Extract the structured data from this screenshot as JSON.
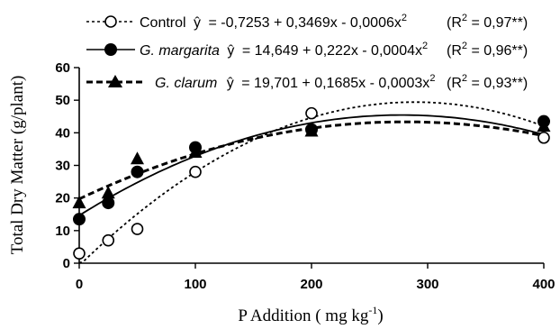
{
  "chart_data": {
    "type": "scatter",
    "xlabel_main": "P Addition ( mg kg",
    "xlabel_sup": "-1",
    "xlabel_end": ")",
    "ylabel": "Total Dry Matter (g/plant)",
    "xlim": [
      0,
      400
    ],
    "ylim": [
      0,
      60
    ],
    "xticks": [
      0,
      100,
      200,
      300,
      400
    ],
    "yticks": [
      0,
      10,
      20,
      30,
      40,
      50,
      60
    ],
    "series": [
      {
        "name": "Control",
        "marker": "open-circle",
        "line": "dotted",
        "equation": "= -0,7253 + 0,3469x - 0,0006x",
        "eq_sup": "2",
        "r2_label": "(R",
        "r2_value": " = 0,97**)",
        "coef": [
          -0.7253,
          0.3469,
          -0.0006
        ],
        "x": [
          0,
          25,
          50,
          100,
          200,
          400
        ],
        "y": [
          3,
          7,
          10.5,
          28,
          46,
          38.5
        ]
      },
      {
        "name": "G. margarita",
        "marker": "filled-circle",
        "line": "solid",
        "equation": "= 14,649 + 0,222x - 0,0004x",
        "eq_sup": "2",
        "r2_label": "(R",
        "r2_value": " = 0,96**)",
        "coef": [
          14.649,
          0.222,
          -0.0004
        ],
        "x": [
          0,
          25,
          50,
          100,
          200,
          400
        ],
        "y": [
          13.5,
          18.5,
          28,
          35.5,
          41,
          43.5
        ]
      },
      {
        "name": "G. clarum",
        "marker": "filled-triangle",
        "line": "dashed",
        "equation": "= 19,701 + 0,1685x - 0,0003x",
        "eq_sup": "2",
        "r2_label": "(R",
        "r2_value": " = 0,93**)",
        "coef": [
          19.701,
          0.1685,
          -0.0003
        ],
        "x": [
          0,
          25,
          50,
          100,
          200,
          400
        ],
        "y": [
          18.5,
          21.5,
          32,
          34,
          40.5,
          42
        ]
      }
    ],
    "yhat": "ŷ",
    "r2_sup": "2"
  }
}
